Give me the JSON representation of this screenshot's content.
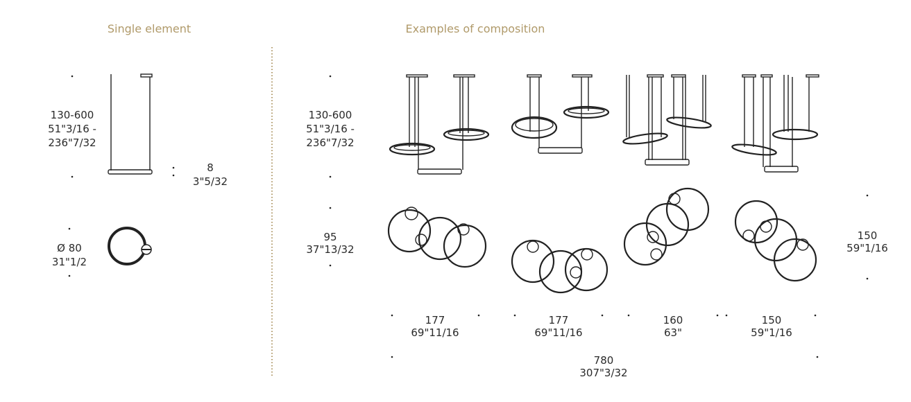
{
  "headings": {
    "single": "Single element",
    "examples": "Examples of composition"
  },
  "single": {
    "height": [
      "130-600",
      "51\"3/16 -",
      "236\"7/32"
    ],
    "thickness": [
      "8",
      "3\"5/32"
    ],
    "diameter": [
      "Ø 80",
      "31\"1/2"
    ]
  },
  "examples": {
    "height": [
      "130-600",
      "51\"3/16 -",
      "236\"7/32"
    ],
    "depth": [
      "95",
      "37\"13/32"
    ],
    "right_depth": [
      "150",
      "59\"1/16"
    ],
    "widths": [
      [
        "177",
        "69\"11/16"
      ],
      [
        "177",
        "69\"11/16"
      ],
      [
        "160",
        "63\""
      ],
      [
        "150",
        "59\"1/16"
      ]
    ],
    "total": [
      "780",
      "307\"3/32"
    ]
  },
  "colors": {
    "heading": "#b09a6a",
    "divider": "#b09a6a",
    "line": "#222222"
  }
}
